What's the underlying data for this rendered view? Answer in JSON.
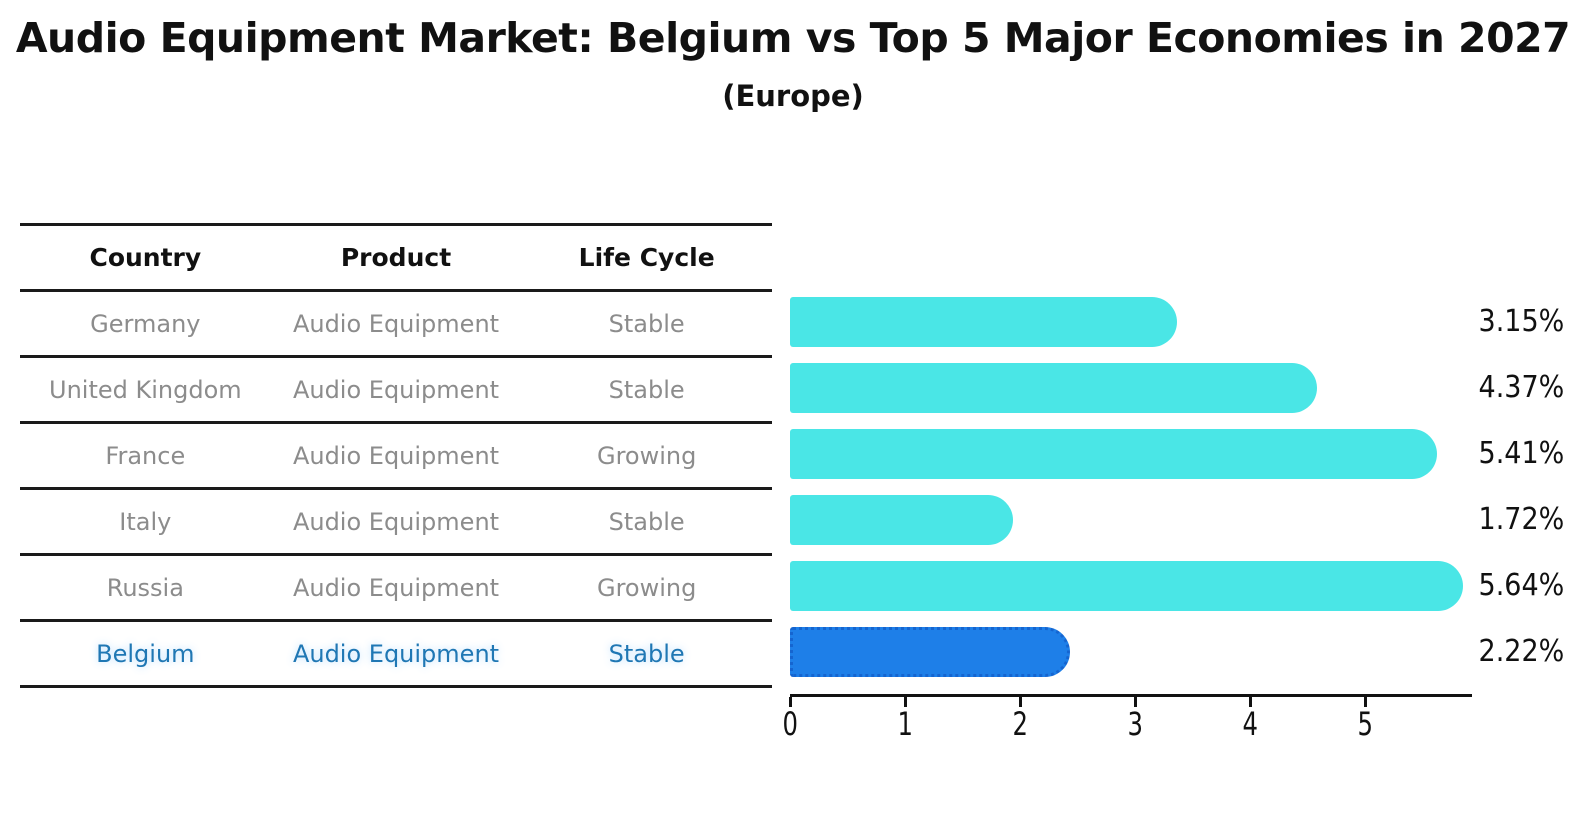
{
  "title": "Audio Equipment Market: Belgium vs Top 5 Major Economies in 2027",
  "subtitle": "(Europe)",
  "table": {
    "headers": [
      "Country",
      "Product",
      "Life Cycle"
    ],
    "rows": [
      {
        "country": "Germany",
        "product": "Audio Equipment",
        "life_cycle": "Stable",
        "highlighted": false
      },
      {
        "country": "United Kingdom",
        "product": "Audio Equipment",
        "life_cycle": "Stable",
        "highlighted": false
      },
      {
        "country": "France",
        "product": "Audio Equipment",
        "life_cycle": "Growing",
        "highlighted": false
      },
      {
        "country": "Italy",
        "product": "Audio Equipment",
        "life_cycle": "Stable",
        "highlighted": false
      },
      {
        "country": "Russia",
        "product": "Audio Equipment",
        "life_cycle": "Growing",
        "highlighted": false
      },
      {
        "country": "Belgium",
        "product": "Audio Equipment",
        "life_cycle": "Stable",
        "highlighted": true
      }
    ]
  },
  "chart_data": {
    "type": "bar",
    "orientation": "horizontal",
    "title": "Audio Equipment Market: Belgium vs Top 5 Major Economies in 2027 (Europe)",
    "categories": [
      "Germany",
      "United Kingdom",
      "France",
      "Italy",
      "Russia",
      "Belgium"
    ],
    "values": [
      3.15,
      4.37,
      5.41,
      1.72,
      5.64,
      2.22
    ],
    "value_labels": [
      "3.15%",
      "4.37%",
      "5.41%",
      "1.72%",
      "5.64%",
      "2.22%"
    ],
    "unit": "percent",
    "x_ticks": [
      0,
      1,
      2,
      3,
      4,
      5
    ],
    "xlim": [
      0,
      5.93
    ],
    "grid": false,
    "legend": "none",
    "highlight_index": 5,
    "bar_color": "#4AE6E6",
    "highlight_color": "#1E7FE8",
    "highlight_border_color": "#1565D0"
  },
  "colors": {
    "title_text": "#111111",
    "table_line": "#1a1a1a",
    "table_text": "#8c8c8c",
    "highlight_text": "#1F77B4",
    "axis": "#111111"
  }
}
